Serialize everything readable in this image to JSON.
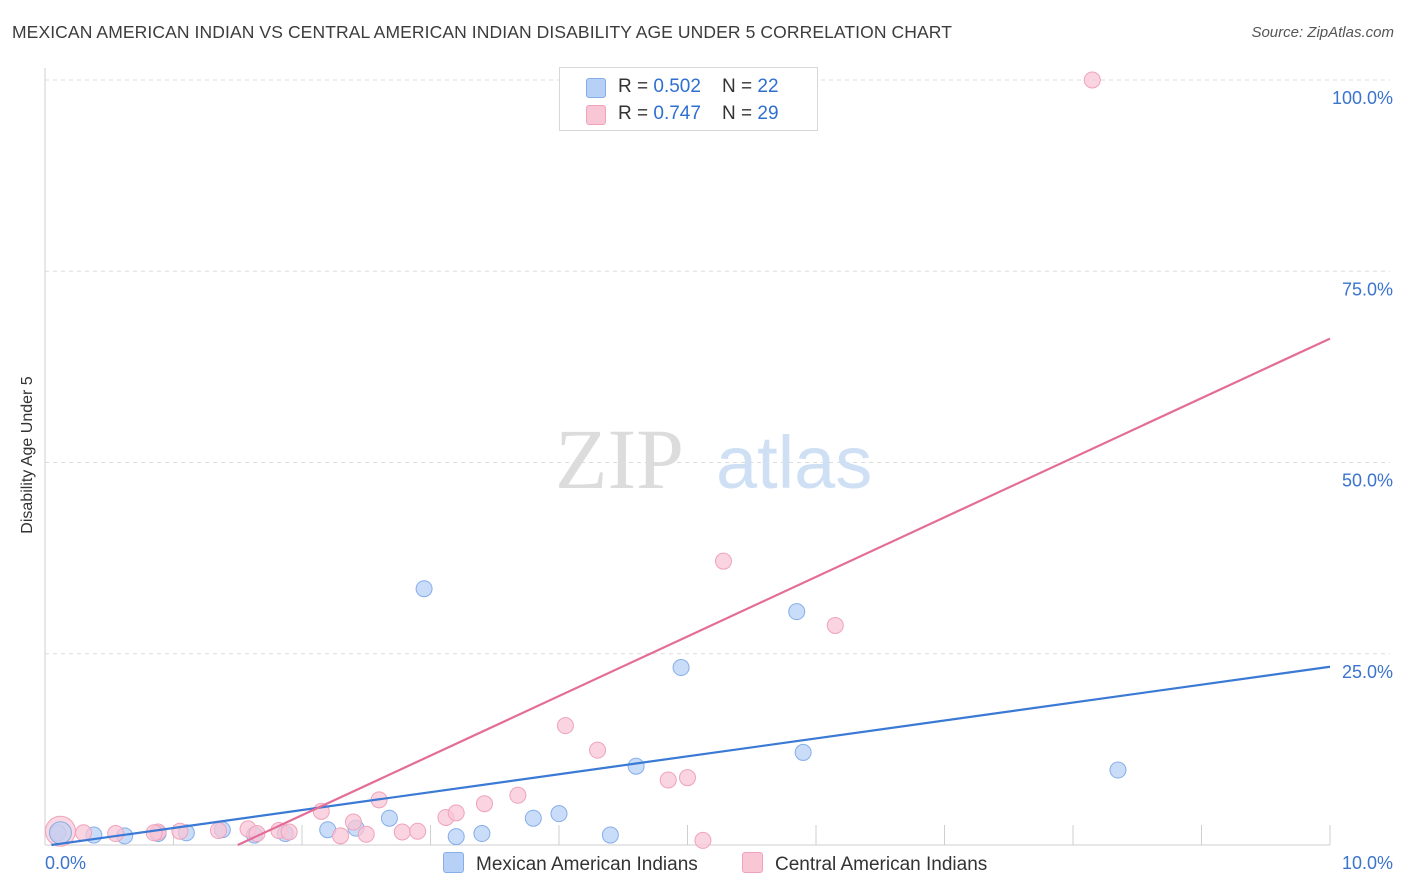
{
  "title": "MEXICAN AMERICAN INDIAN VS CENTRAL AMERICAN INDIAN DISABILITY AGE UNDER 5 CORRELATION CHART",
  "source": "Source: ZipAtlas.com",
  "watermark": {
    "zip": "ZIP",
    "atlas": "atlas"
  },
  "legend": {
    "rows": [
      {
        "r_label": "R = ",
        "r_value": "0.502",
        "n_label": "N = ",
        "n_value": "22"
      },
      {
        "r_label": "R = ",
        "r_value": "0.747",
        "n_label": "N = ",
        "n_value": "29"
      }
    ]
  },
  "bottom_legend": {
    "mexican": "Mexican American Indians",
    "central": "Central American Indians"
  },
  "colors": {
    "blue_fill": "#b7d0f5",
    "blue_stroke": "#86aee9",
    "blue_line": "#3a79d4",
    "pink_fill": "#f8c6d5",
    "pink_stroke": "#efa3bb",
    "pink_line": "#e46d97",
    "tick_label": "#3a74cc",
    "grid": "#dddddd"
  },
  "chart_data": {
    "type": "scatter",
    "xlabel": "",
    "ylabel": "Disability Age Under 5",
    "xlim": [
      0,
      10
    ],
    "ylim": [
      0,
      100
    ],
    "x_tick_labels": [
      "0.0%",
      "10.0%"
    ],
    "y_ticks": [
      25,
      50,
      75,
      100
    ],
    "y_tick_labels": [
      "25.0%",
      "50.0%",
      "75.0%",
      "100.0%"
    ],
    "grid": true,
    "series": [
      {
        "name": "Mexican American Indians",
        "color": "#b7d0f5",
        "points": [
          [
            0.1,
            1.6
          ],
          [
            0.38,
            1.3
          ],
          [
            0.62,
            1.2
          ],
          [
            0.88,
            1.5
          ],
          [
            1.1,
            1.6
          ],
          [
            1.38,
            2.0
          ],
          [
            1.63,
            1.3
          ],
          [
            1.87,
            1.5
          ],
          [
            2.2,
            2.0
          ],
          [
            2.42,
            2.2
          ],
          [
            2.68,
            3.5
          ],
          [
            2.95,
            33.5
          ],
          [
            3.2,
            1.1
          ],
          [
            3.4,
            1.5
          ],
          [
            3.8,
            3.5
          ],
          [
            4.0,
            4.1
          ],
          [
            4.4,
            1.3
          ],
          [
            4.6,
            10.3
          ],
          [
            4.95,
            23.2
          ],
          [
            5.85,
            30.5
          ],
          [
            5.9,
            12.1
          ],
          [
            8.35,
            9.8
          ]
        ],
        "trend": {
          "x": [
            0.05,
            10.0
          ],
          "y": [
            0.0,
            23.3
          ]
        }
      },
      {
        "name": "Central American Indians",
        "color": "#f8c6d5",
        "points": [
          [
            0.3,
            1.6
          ],
          [
            0.55,
            1.5
          ],
          [
            0.88,
            1.7
          ],
          [
            1.05,
            1.8
          ],
          [
            1.35,
            1.9
          ],
          [
            1.58,
            2.1
          ],
          [
            1.65,
            1.5
          ],
          [
            1.82,
            1.9
          ],
          [
            2.15,
            4.4
          ],
          [
            2.3,
            1.2
          ],
          [
            2.4,
            3.0
          ],
          [
            2.6,
            5.9
          ],
          [
            2.78,
            1.7
          ],
          [
            2.9,
            1.8
          ],
          [
            3.12,
            3.6
          ],
          [
            3.2,
            4.2
          ],
          [
            3.42,
            5.4
          ],
          [
            3.68,
            6.5
          ],
          [
            4.05,
            15.6
          ],
          [
            4.3,
            12.4
          ],
          [
            4.85,
            8.5
          ],
          [
            5.0,
            8.8
          ],
          [
            5.12,
            0.6
          ],
          [
            5.28,
            37.1
          ],
          [
            6.15,
            28.7
          ],
          [
            8.15,
            100.0
          ],
          [
            1.9,
            1.7
          ],
          [
            0.85,
            1.6
          ],
          [
            2.5,
            1.4
          ]
        ],
        "trend": {
          "x": [
            1.5,
            10.0
          ],
          "y": [
            0.0,
            66.2
          ]
        }
      }
    ]
  }
}
